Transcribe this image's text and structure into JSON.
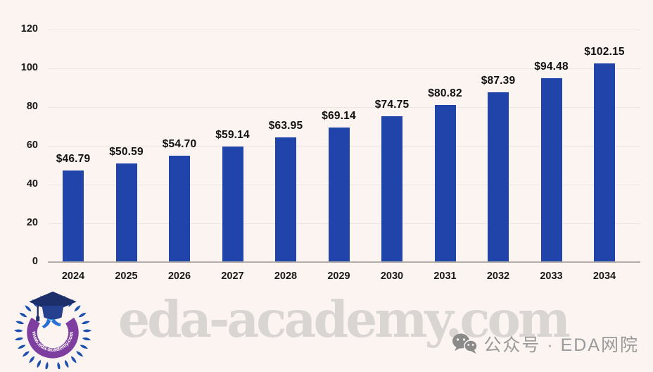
{
  "chart_data": {
    "type": "bar",
    "title": "",
    "categories": [
      "2024",
      "2025",
      "2026",
      "2027",
      "2028",
      "2029",
      "2030",
      "2031",
      "2032",
      "2033",
      "2034"
    ],
    "values": [
      46.79,
      50.59,
      54.7,
      59.14,
      63.95,
      69.14,
      74.75,
      80.82,
      87.39,
      94.48,
      102.15
    ],
    "value_labels": [
      "$46.79",
      "$50.59",
      "$54.70",
      "$59.14",
      "$63.95",
      "$69.14",
      "$74.75",
      "$80.82",
      "$87.39",
      "$94.48",
      "$102.15"
    ],
    "xlabel": "",
    "ylabel": "",
    "yticks": [
      0,
      20,
      40,
      60,
      80,
      100,
      120
    ],
    "ylim": [
      0,
      120
    ],
    "grid": true,
    "legend": false,
    "bar_color": "#2144ab",
    "label_color": "#111111",
    "axis_line_color": "#b3adaa",
    "gridline_color": "#ece4e1"
  },
  "watermark": {
    "text": "eda-academy.com",
    "color": "#d9d5d3"
  },
  "wechat": {
    "label": "公众号 · EDA网院",
    "icon": "wechat-icon",
    "color": "#9a9a9a"
  },
  "logo": {
    "ring_text": "www.eda-academy.com",
    "wreath_color": "#1d4fae",
    "ring_color": "#7e3e9f"
  },
  "background_color": "#fbf4f1"
}
